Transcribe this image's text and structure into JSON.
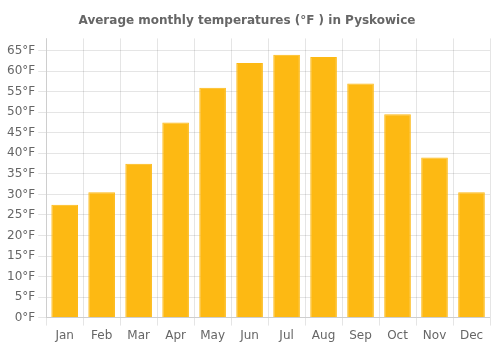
{
  "chart_data": {
    "type": "bar",
    "title": "Average monthly temperatures (°F ) in Pyskowice",
    "categories": [
      "Jan",
      "Feb",
      "Mar",
      "Apr",
      "May",
      "Jun",
      "Jul",
      "Aug",
      "Sep",
      "Oct",
      "Nov",
      "Dec"
    ],
    "values": [
      27.5,
      30.5,
      37.5,
      47.5,
      56.0,
      62.0,
      64.0,
      63.5,
      57.0,
      49.5,
      39.0,
      30.5
    ],
    "color": "#FDB913",
    "ylim": [
      0,
      68
    ],
    "yticks": [
      {
        "value": 0,
        "label": "0°F"
      },
      {
        "value": 5,
        "label": "5°F"
      },
      {
        "value": 10,
        "label": "10°F"
      },
      {
        "value": 15,
        "label": "15°F"
      },
      {
        "value": 20,
        "label": "20°F"
      },
      {
        "value": 25,
        "label": "25°F"
      },
      {
        "value": 30,
        "label": "30°F"
      },
      {
        "value": 35,
        "label": "35°F"
      },
      {
        "value": 40,
        "label": "40°F"
      },
      {
        "value": 45,
        "label": "45°F"
      },
      {
        "value": 50,
        "label": "50°F"
      },
      {
        "value": 55,
        "label": "55°F"
      },
      {
        "value": 60,
        "label": "60°F"
      },
      {
        "value": 65,
        "label": "65°F"
      }
    ],
    "grid": true
  }
}
